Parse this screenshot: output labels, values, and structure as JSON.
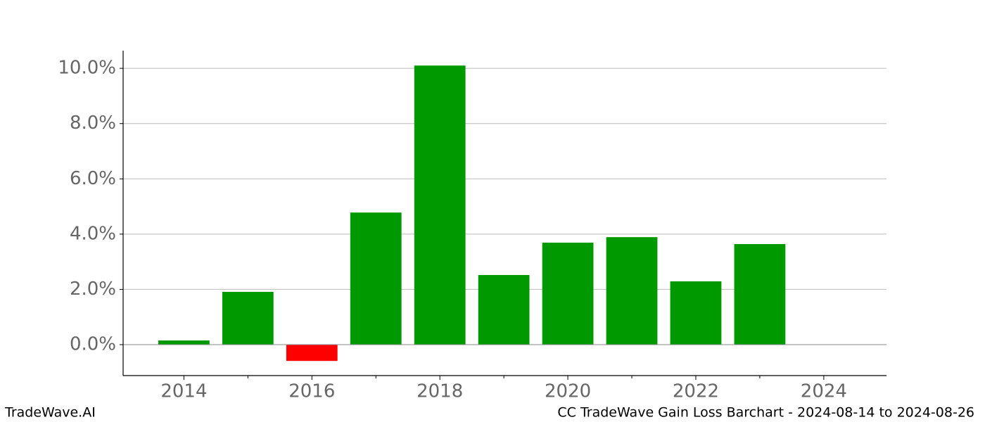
{
  "chart_data": {
    "type": "bar",
    "x": [
      2014,
      2015,
      2016,
      2017,
      2018,
      2019,
      2020,
      2021,
      2022,
      2023
    ],
    "values": [
      0.15,
      1.91,
      -0.59,
      4.78,
      10.1,
      2.52,
      3.69,
      3.89,
      2.29,
      3.64
    ],
    "color": "#009900",
    "negative_color": "#ff0000",
    "xlim": [
      2013.05,
      2024.98
    ],
    "xticks": [
      2014,
      2016,
      2018,
      2020,
      2022,
      2024
    ],
    "xminorticks": [
      2015,
      2017,
      2019,
      2021,
      2023
    ],
    "ylim": [
      -1.12,
      10.64
    ],
    "yticks": [
      {
        "value": 0,
        "label": "0.0%"
      },
      {
        "value": 2,
        "label": "2.0%"
      },
      {
        "value": 4,
        "label": "4.0%"
      },
      {
        "value": 6,
        "label": "6.0%"
      },
      {
        "value": 8,
        "label": "8.0%"
      },
      {
        "value": 10,
        "label": "10.0%"
      }
    ],
    "grid": true,
    "footer_left": "TradeWave.AI",
    "footer_right": "CC TradeWave Gain Loss Barchart - 2024-08-14 to 2024-08-26"
  }
}
